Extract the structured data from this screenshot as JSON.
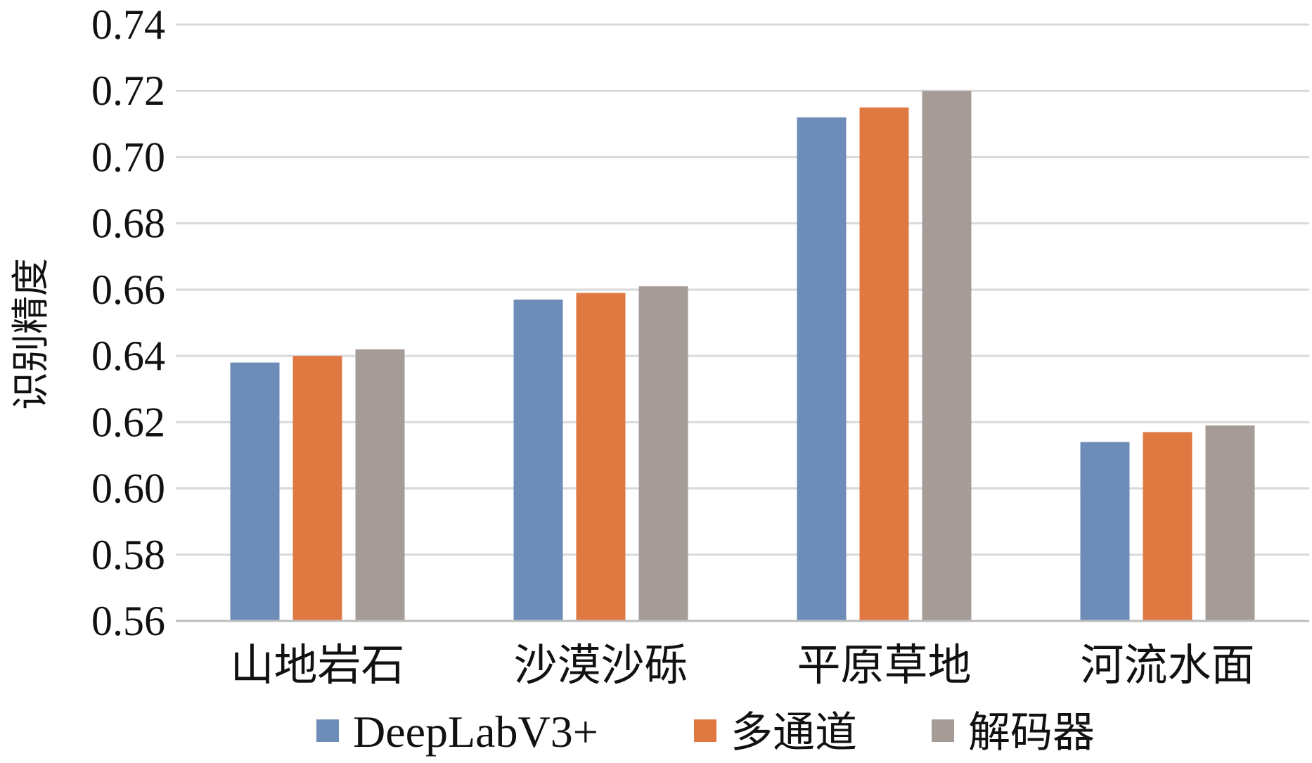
{
  "chart_data": {
    "type": "bar",
    "ylabel": "识别精度",
    "xlabel": "",
    "ylim": [
      0.56,
      0.74
    ],
    "yticks": [
      0.56,
      0.58,
      0.6,
      0.62,
      0.64,
      0.66,
      0.68,
      0.7,
      0.72,
      0.74
    ],
    "ytick_labels": [
      "0.56",
      "0.58",
      "0.60",
      "0.62",
      "0.64",
      "0.66",
      "0.68",
      "0.70",
      "0.72",
      "0.74"
    ],
    "grid": true,
    "legend_position": "bottom",
    "categories": [
      "山地岩石",
      "沙漠沙砾",
      "平原草地",
      "河流水面"
    ],
    "series": [
      {
        "name": "DeepLabV3+",
        "color": "#6d8db8",
        "values": [
          0.638,
          0.657,
          0.712,
          0.614
        ]
      },
      {
        "name": "多通道",
        "color": "#e07842",
        "values": [
          0.64,
          0.659,
          0.715,
          0.617
        ]
      },
      {
        "name": "解码器",
        "color": "#a59c97",
        "values": [
          0.642,
          0.661,
          0.72,
          0.619
        ]
      }
    ]
  }
}
